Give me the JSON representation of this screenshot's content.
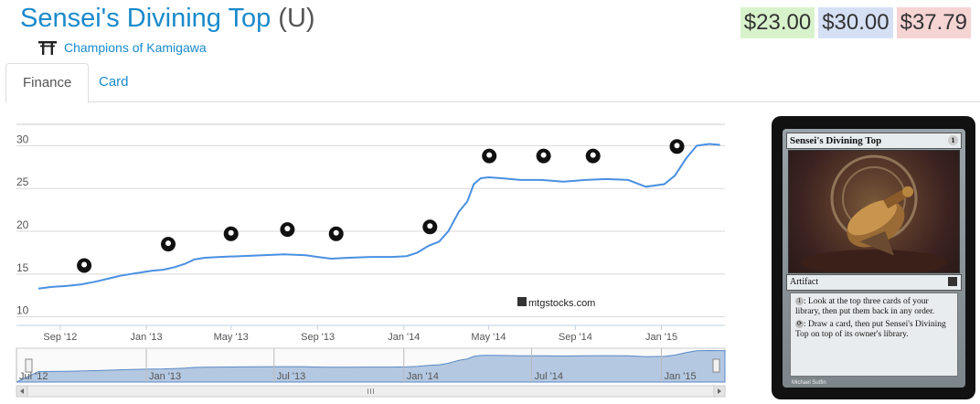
{
  "card": {
    "name": "Sensei's Divining Top",
    "rarity": "(U)",
    "set_name": "Champions of Kamigawa",
    "set_icon": "torii-icon"
  },
  "prices": {
    "low": "$23.00",
    "mid": "$30.00",
    "high": "$37.79"
  },
  "tabs": [
    {
      "label": "Finance"
    },
    {
      "label": "Card"
    }
  ],
  "chart_data": {
    "type": "line",
    "series": [
      {
        "x": [
          "2012-08-01",
          "2012-08-20",
          "2012-09-10",
          "2012-10-01",
          "2012-10-20",
          "2012-11-10",
          "2012-11-25",
          "2012-12-10",
          "2012-12-25",
          "2013-01-10",
          "2013-01-25",
          "2013-02-10",
          "2013-02-25",
          "2013-03-10",
          "2013-03-25",
          "2013-04-15",
          "2013-05-15",
          "2013-06-15",
          "2013-07-15",
          "2013-08-15",
          "2013-09-01",
          "2013-09-20",
          "2013-10-15",
          "2013-11-15",
          "2013-12-15",
          "2014-01-05",
          "2014-01-20",
          "2014-02-05",
          "2014-02-20",
          "2014-03-05",
          "2014-03-20",
          "2014-04-01",
          "2014-04-10",
          "2014-04-20",
          "2014-05-01",
          "2014-05-20",
          "2014-06-15",
          "2014-07-15",
          "2014-08-15",
          "2014-09-15",
          "2014-10-15",
          "2014-11-15",
          "2014-12-10",
          "2015-01-05",
          "2015-01-20",
          "2015-02-05",
          "2015-02-20",
          "2015-03-10",
          "2015-03-25"
        ],
        "values": [
          13.3,
          13.5,
          13.6,
          13.8,
          14.1,
          14.5,
          14.8,
          15.0,
          15.2,
          15.4,
          15.5,
          15.8,
          16.2,
          16.7,
          16.9,
          17.0,
          17.1,
          17.2,
          17.3,
          17.2,
          17.0,
          16.8,
          16.9,
          17.0,
          17.0,
          17.1,
          17.5,
          18.3,
          18.8,
          20.0,
          22.3,
          23.5,
          25.5,
          26.2,
          26.3,
          26.2,
          26.0,
          26.0,
          25.8,
          26.0,
          26.1,
          26.0,
          25.2,
          25.5,
          26.5,
          28.5,
          30.0,
          30.2,
          30.1
        ]
      }
    ],
    "yticks": [
      10,
      15,
      20,
      25,
      30
    ],
    "ylim": [
      9,
      32.5
    ],
    "xticks": [
      "Sep '12",
      "Jan '13",
      "May '13",
      "Sep '13",
      "Jan '14",
      "May '14",
      "Sep '14",
      "Jan '15"
    ],
    "xtick_dates": [
      "2012-09-01",
      "2013-01-01",
      "2013-05-01",
      "2013-09-01",
      "2014-01-01",
      "2014-05-01",
      "2014-09-01",
      "2015-01-01"
    ],
    "xlim": [
      "2012-07-01",
      "2015-04-01"
    ],
    "grid": true,
    "line_color": "#4a90e2",
    "watermark": "mtgstocks.com",
    "set_markers": [
      {
        "icon": "return-to-ravnica-icon",
        "date": "2012-10-05",
        "value": 16.0
      },
      {
        "icon": "gatecrash-icon",
        "date": "2013-02-01",
        "value": 18.5
      },
      {
        "icon": "dragons-maze-icon",
        "date": "2013-05-01",
        "value": 19.7
      },
      {
        "icon": "m14-icon",
        "date": "2013-07-20",
        "value": 20.2
      },
      {
        "icon": "theros-icon",
        "date": "2013-09-27",
        "value": 19.7
      },
      {
        "icon": "born-of-the-gods-icon",
        "date": "2014-02-07",
        "value": 20.5
      },
      {
        "icon": "journey-into-nyx-icon",
        "date": "2014-05-02",
        "value": 28.8
      },
      {
        "icon": "m15-icon",
        "date": "2014-07-18",
        "value": 28.8
      },
      {
        "icon": "khans-of-tarkir-icon",
        "date": "2014-09-26",
        "value": 28.8
      },
      {
        "icon": "fate-reforged-icon",
        "date": "2015-01-23",
        "value": 29.9
      }
    ],
    "navigator": {
      "xticks": [
        "Jul '12",
        "Jan '13",
        "Jul '13",
        "Jan '14",
        "Jul '14",
        "Jan '15"
      ],
      "xtick_dates": [
        "2012-07-01",
        "2013-01-01",
        "2013-07-01",
        "2014-01-01",
        "2014-07-01",
        "2015-01-01"
      ],
      "fill_color": "#b4c8e1"
    }
  },
  "card_image": {
    "name": "Sensei's Divining Top",
    "type_line": "Artifact",
    "rules_1": ": Look at the top three cards of your library, then put them back in any order.",
    "rules_2": ": Draw a card, then put Sensei's Divining Top on top of its owner's library.",
    "artist": "Michael Sutfin"
  }
}
